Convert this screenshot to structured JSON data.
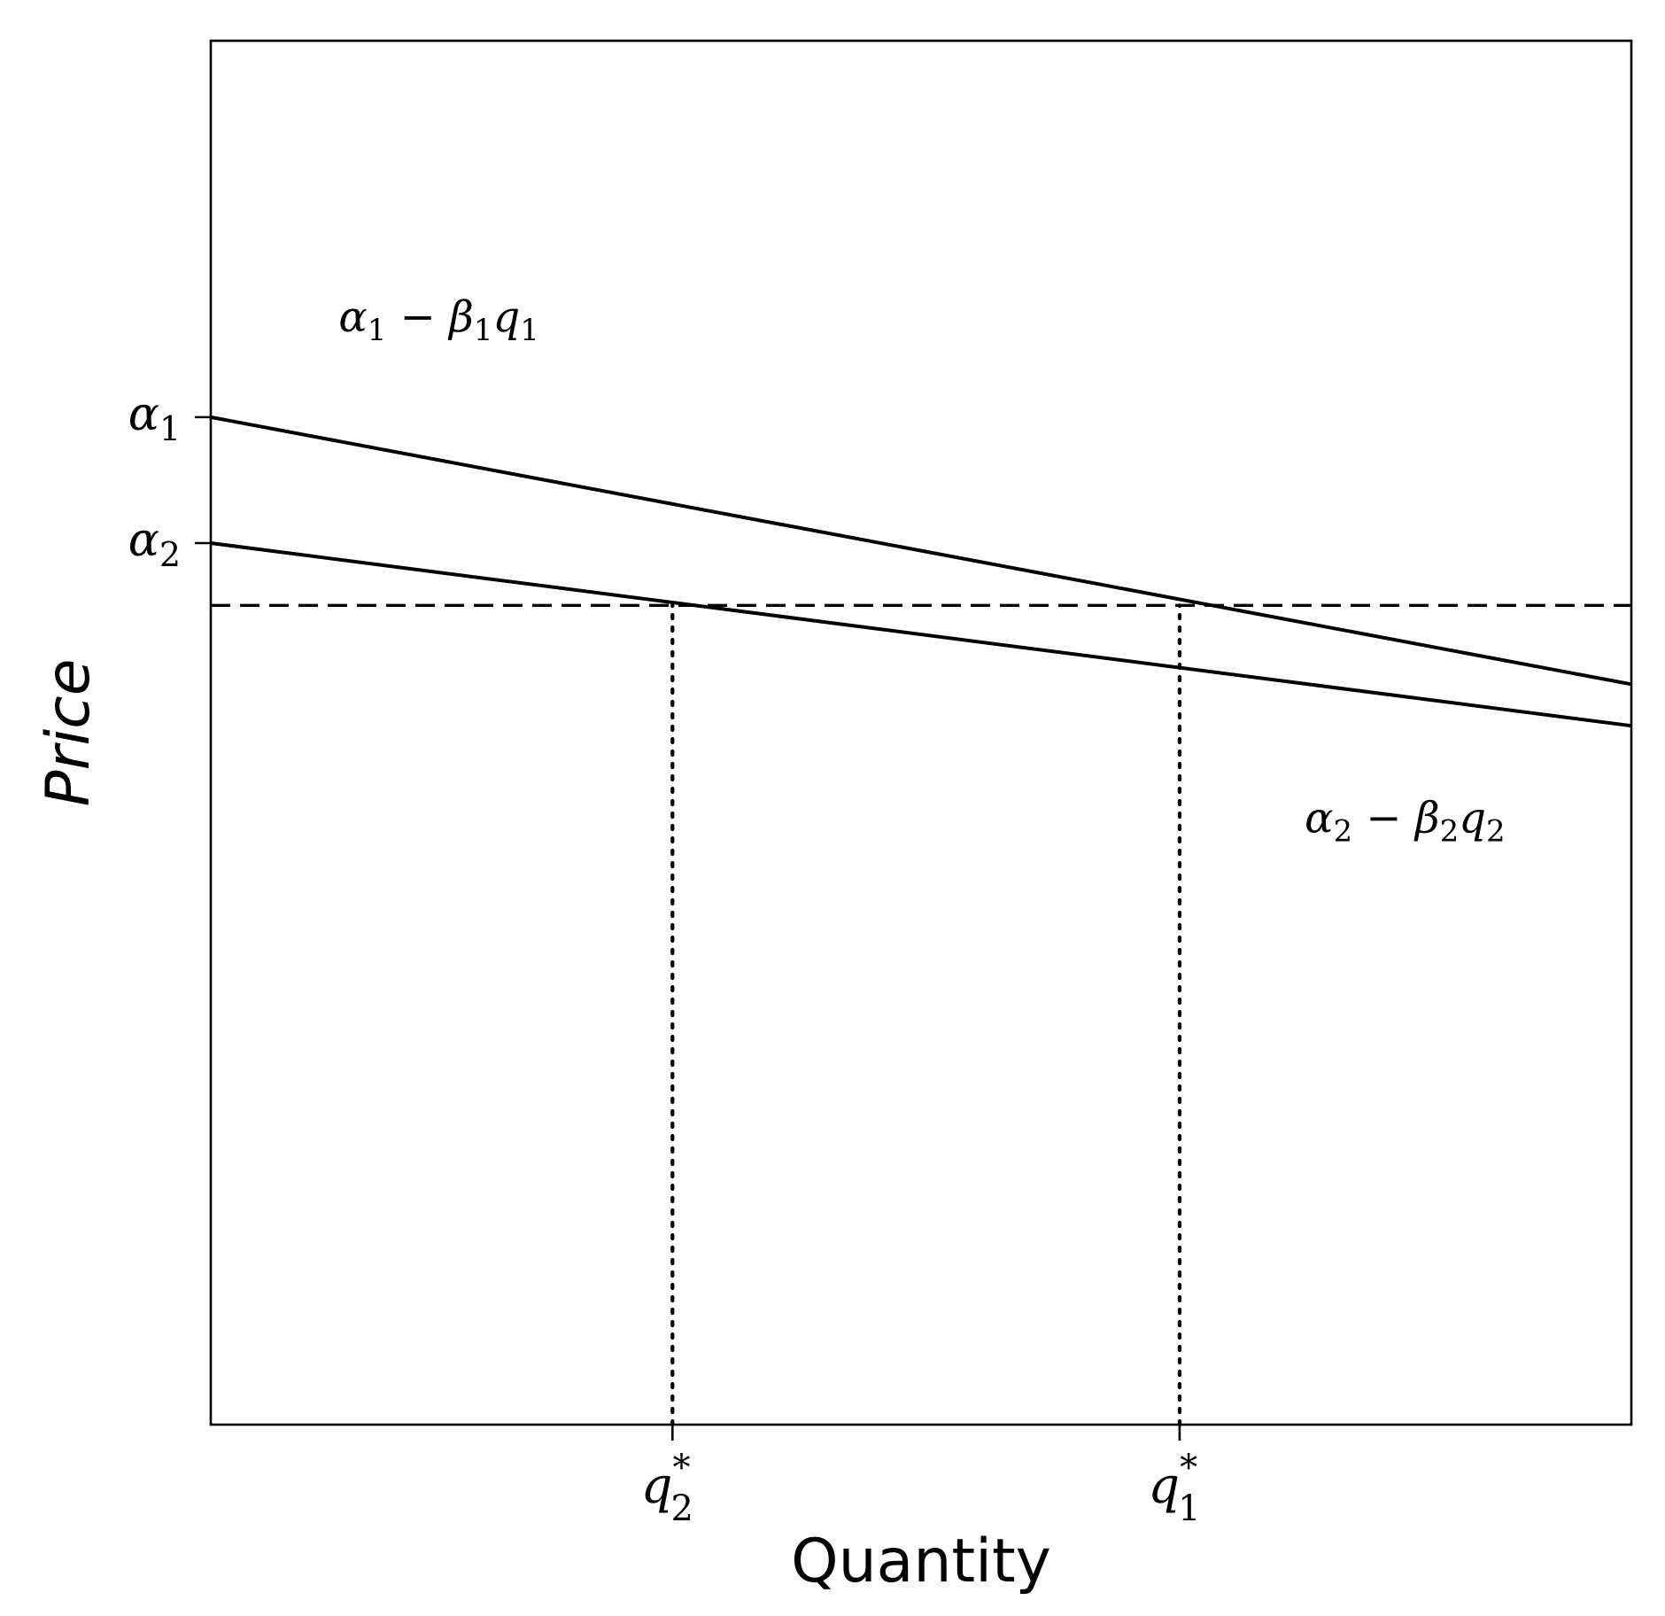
{
  "chart_data": {
    "type": "line",
    "xlabel": "Quantity",
    "ylabel": "Price",
    "xlim": [
      0,
      10
    ],
    "ylim": [
      0,
      10
    ],
    "grid": false,
    "legend": "none",
    "x_ticks": [
      {
        "value": 3.25,
        "base": "q",
        "sub": "2",
        "sup": "*"
      },
      {
        "value": 6.82,
        "base": "q",
        "sub": "1",
        "sup": "*"
      }
    ],
    "y_ticks": [
      {
        "value": 7.28,
        "base": "α",
        "sub": "1"
      },
      {
        "value": 6.37,
        "base": "α",
        "sub": "2"
      }
    ],
    "series": [
      {
        "x": [
          0,
          10
        ],
        "y": [
          7.28,
          5.35
        ],
        "style": "solid",
        "color": "#000000"
      },
      {
        "x": [
          0,
          10
        ],
        "y": [
          6.37,
          5.05
        ],
        "style": "solid",
        "color": "#000000"
      }
    ],
    "hlines": [
      {
        "y": 5.92,
        "style": "dashed",
        "color": "#000000"
      }
    ],
    "vlines": [
      {
        "x": 3.25,
        "ymax": 5.92,
        "style": "dotted",
        "color": "#000000"
      },
      {
        "x": 6.82,
        "ymax": 5.92,
        "style": "dotted",
        "color": "#000000"
      }
    ],
    "annotations": [
      {
        "x": 0.9,
        "y": 7.9,
        "parts": [
          "α",
          "1",
          " − ",
          "β",
          "1",
          "q",
          "1"
        ]
      },
      {
        "x": 7.7,
        "y": 4.28,
        "parts": [
          "α",
          "2",
          " − ",
          "β",
          "2",
          "q",
          "2"
        ]
      }
    ]
  }
}
